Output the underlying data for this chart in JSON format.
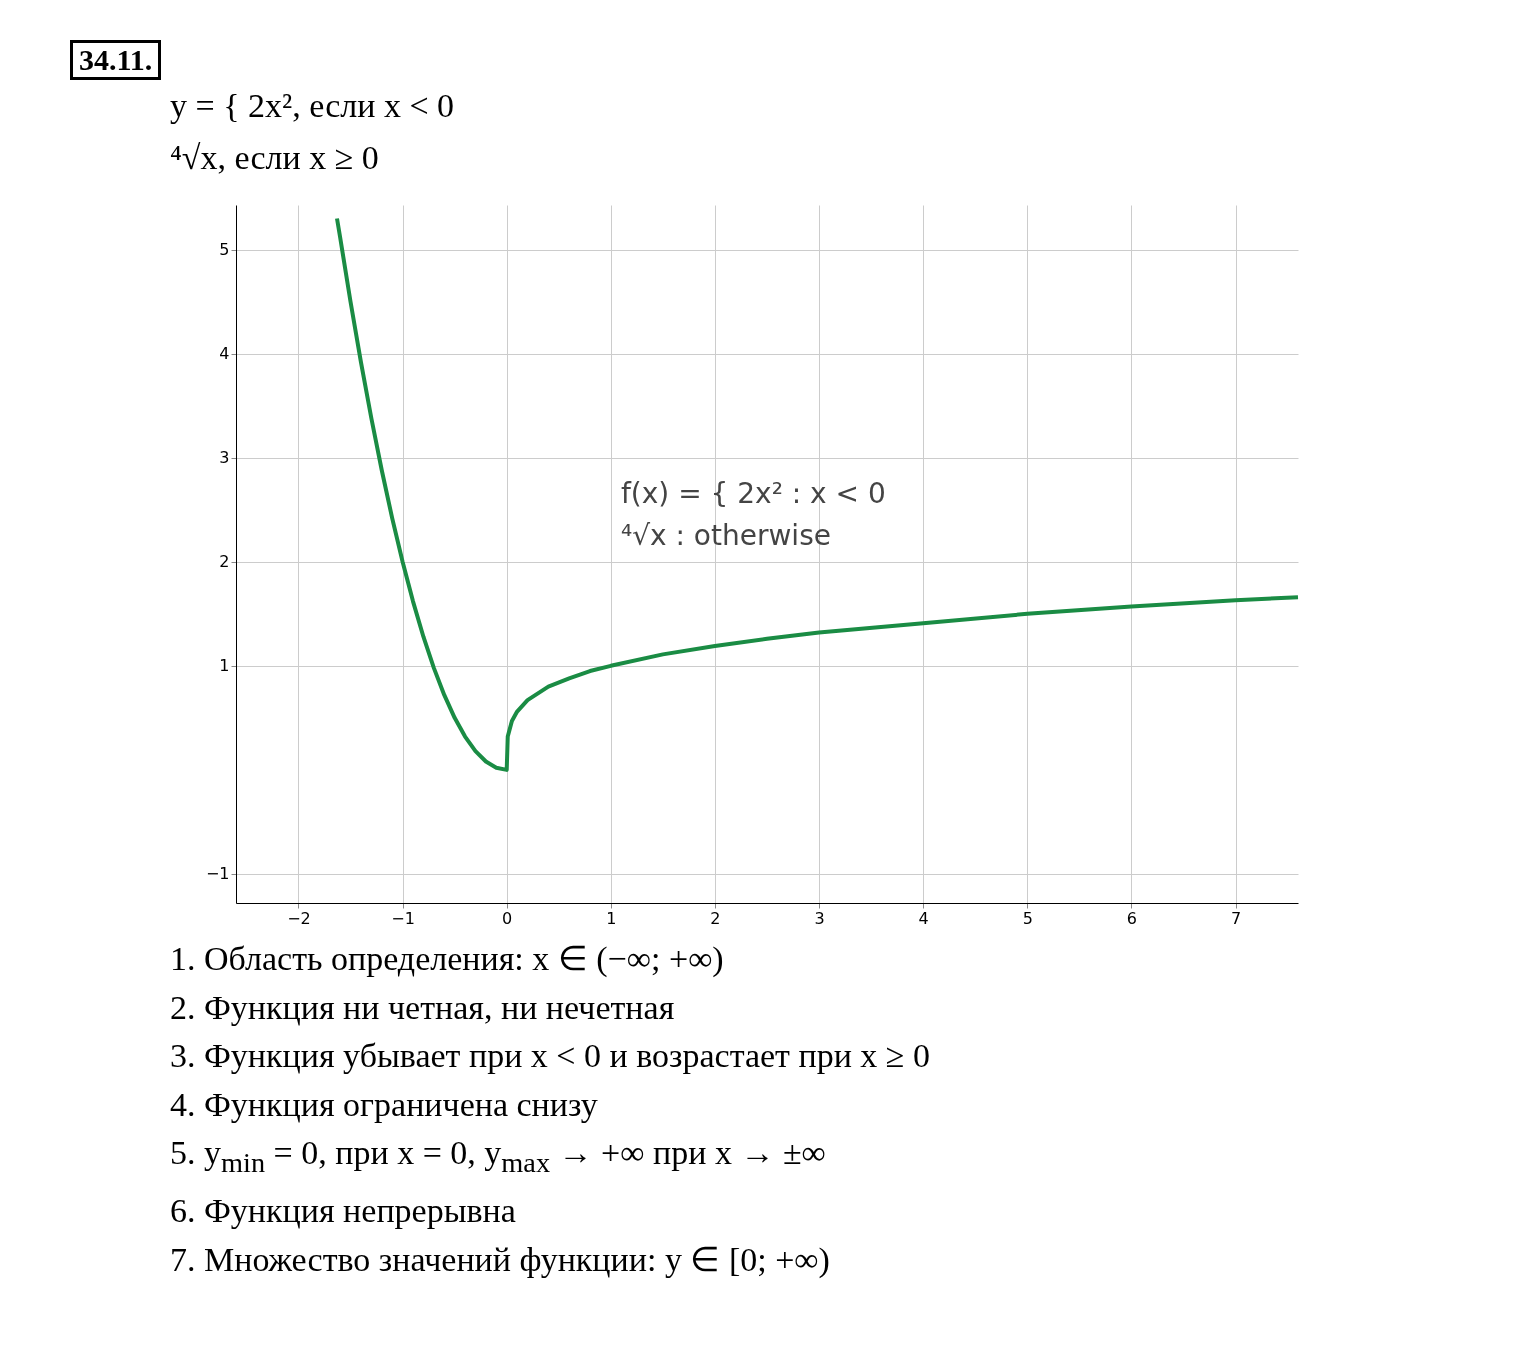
{
  "chart_data": {
    "type": "line",
    "title": "34.11.",
    "subtitle": "y = { 2x², если x < 0\n⁴√x, если x ≥ 0",
    "x": [
      -1.63,
      -1.6,
      -1.5,
      -1.4,
      -1.3,
      -1.2,
      -1.1,
      -1.0,
      -0.9,
      -0.8,
      -0.7,
      -0.6,
      -0.5,
      -0.4,
      -0.3,
      -0.2,
      -0.1,
      0,
      0.01,
      0.05,
      0.1,
      0.2,
      0.4,
      0.6,
      0.8,
      1,
      1.5,
      2,
      2.5,
      3,
      4,
      5,
      6,
      7,
      7.6
    ],
    "series": [
      {
        "color": "#1a8c44",
        "values": [
          5.3,
          5.12,
          4.5,
          3.92,
          3.38,
          2.88,
          2.42,
          2.0,
          1.62,
          1.28,
          0.98,
          0.72,
          0.5,
          0.32,
          0.18,
          0.08,
          0.02,
          0,
          0.32,
          0.47,
          0.56,
          0.67,
          0.8,
          0.88,
          0.95,
          1.0,
          1.11,
          1.19,
          1.26,
          1.32,
          1.41,
          1.5,
          1.57,
          1.63,
          1.66
        ]
      }
    ],
    "xlim": [
      -2.6,
      7.6
    ],
    "ylim": [
      -1.28,
      5.43
    ],
    "xticks": [
      -2,
      -1,
      0,
      1,
      2,
      3,
      4,
      5,
      6,
      7
    ],
    "yticks": [
      -1,
      1,
      2,
      3,
      4,
      5
    ],
    "grid": true,
    "marker": "none",
    "line_style": "solid",
    "annotations": [
      "f(x) = {  2x²   : x < 0",
      "⁴√x   : otherwise",
      "1.  Область определения: x ∈ (−∞; +∞)",
      "2.  Функция ни четная, ни нечетная",
      "3.  Функция убывает при x < 0 и возрастает при x ≥ 0",
      "4.  Функция ограничена снизу",
      "5.  y$_{min}$ = 0, при x = 0, y$_{max}$ → +∞ при x → ±∞",
      "6.  Функция непрерывна",
      "7.  Множество значений функции: y ∈ [0; +∞)"
    ]
  }
}
